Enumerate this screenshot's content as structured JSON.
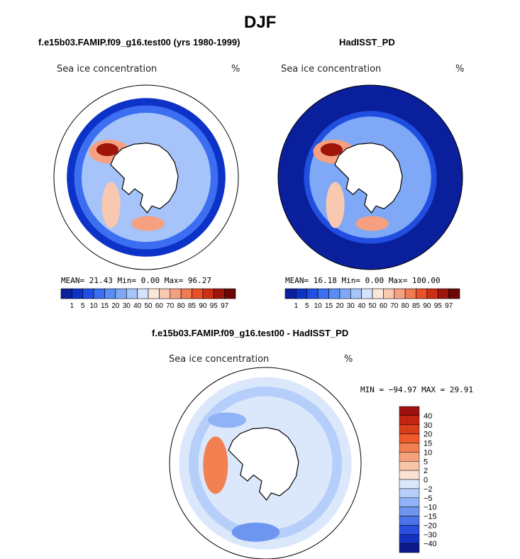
{
  "figure": {
    "title": "DJF"
  },
  "chart_data": [
    {
      "type": "heatmap",
      "title": "f.e15b03.FAMIP.f09_g16.test00 (yrs 1980-1999)",
      "field_label": "Sea ice concentration",
      "units": "%",
      "stats": {
        "mean_label": "MEAN=",
        "mean": "21.43",
        "min_label": "Min=",
        "min": "0.00",
        "max_label": "Max=",
        "max": "96.27"
      },
      "levels": [
        "1",
        "5",
        "10",
        "15",
        "20",
        "30",
        "40",
        "50",
        "60",
        "70",
        "80",
        "85",
        "90",
        "95",
        "97"
      ],
      "colors": [
        "#0a1f9b",
        "#0d32c7",
        "#1f4ee0",
        "#3b6ef0",
        "#5a8cf5",
        "#7fa9f7",
        "#a6c4fa",
        "#d4e4fb",
        "#fbe6d9",
        "#f9c8b1",
        "#f5a080",
        "#f07a52",
        "#e8502a",
        "#cc2f14",
        "#a0150a",
        "#6e0505"
      ]
    },
    {
      "type": "heatmap",
      "title": "HadISST_PD",
      "field_label": "Sea ice concentration",
      "units": "%",
      "stats": {
        "mean_label": "MEAN=",
        "mean": "16.18",
        "min_label": "Min=",
        "min": "0.00",
        "max_label": "Max=",
        "max": "100.00"
      },
      "levels": [
        "1",
        "5",
        "10",
        "15",
        "20",
        "30",
        "40",
        "50",
        "60",
        "70",
        "80",
        "85",
        "90",
        "95",
        "97"
      ],
      "colors": [
        "#0a1f9b",
        "#0d32c7",
        "#1f4ee0",
        "#3b6ef0",
        "#5a8cf5",
        "#7fa9f7",
        "#a6c4fa",
        "#d4e4fb",
        "#fbe6d9",
        "#f9c8b1",
        "#f5a080",
        "#f07a52",
        "#e8502a",
        "#cc2f14",
        "#a0150a",
        "#6e0505"
      ]
    },
    {
      "type": "heatmap",
      "title": "f.e15b03.FAMIP.f09_g16.test00 - HadISST_PD",
      "field_label": "Sea ice concentration",
      "units": "%",
      "stats": {
        "text": "MIN = −94.97 MAX =  29.91"
      },
      "levels": [
        "40",
        "30",
        "20",
        "15",
        "10",
        "5",
        "2",
        "0",
        "−2",
        "−5",
        "−10",
        "−15",
        "−20",
        "−30",
        "−40"
      ],
      "colors": [
        "#a01010",
        "#c42612",
        "#d8401c",
        "#ee5a2a",
        "#f28050",
        "#f5a27a",
        "#f9c5a8",
        "#fbe3d4",
        "#dbe8fb",
        "#b5cefa",
        "#8fb3f6",
        "#6e95f0",
        "#4a74e8",
        "#2a4fdc",
        "#1432c0",
        "#0a1a8a"
      ]
    }
  ]
}
